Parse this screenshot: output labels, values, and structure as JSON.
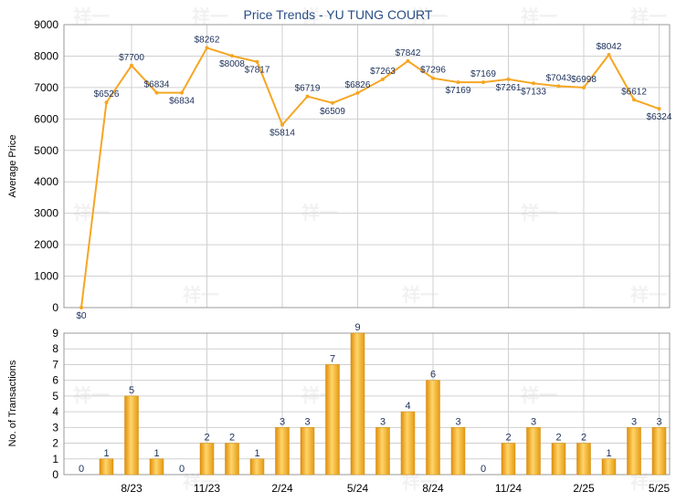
{
  "chart_data": [
    {
      "type": "line",
      "title": "Price Trends - YU TUNG COURT",
      "ylabel": "Average Price",
      "ylim": [
        0,
        9000
      ],
      "yticks": [
        "0",
        "1000",
        "2000",
        "3000",
        "4000",
        "5000",
        "6000",
        "7000",
        "8000",
        "9000"
      ],
      "grid": true,
      "color": "#f5a623",
      "x": [
        0,
        1,
        2,
        3,
        4,
        5,
        6,
        7,
        8,
        9,
        10,
        11,
        12,
        13,
        14,
        15,
        16,
        17,
        18,
        19,
        20,
        21,
        22,
        23
      ],
      "values": [
        0,
        6526,
        7700,
        6834,
        6834,
        8262,
        8008,
        7817,
        5814,
        6719,
        6509,
        6826,
        7263,
        7842,
        7296,
        7169,
        7169,
        7261,
        7133,
        7043,
        6998,
        8042,
        6612,
        6324
      ],
      "labels": [
        "$0",
        "$6526",
        "$7700",
        "$6834",
        "$6834",
        "$8262",
        "$8008",
        "$7817",
        "$5814",
        "$6719",
        "$6509",
        "$6826",
        "$7263",
        "$7842",
        "$7296",
        "$7169",
        "$7169",
        "$7261",
        "$7133",
        "$7043",
        "$6998",
        "$8042",
        "$6612",
        "$6324"
      ]
    },
    {
      "type": "bar",
      "ylabel": "No. of Transactions",
      "ylim": [
        0,
        9
      ],
      "yticks": [
        "0",
        "1",
        "2",
        "3",
        "4",
        "5",
        "6",
        "7",
        "8",
        "9"
      ],
      "grid": true,
      "color": "#f0a81e",
      "x": [
        0,
        1,
        2,
        3,
        4,
        5,
        6,
        7,
        8,
        9,
        10,
        11,
        12,
        13,
        14,
        15,
        16,
        17,
        18,
        19,
        20,
        21,
        22,
        23
      ],
      "values": [
        0,
        1,
        5,
        1,
        0,
        2,
        2,
        1,
        3,
        3,
        7,
        9,
        3,
        4,
        6,
        3,
        0,
        2,
        3,
        2,
        2,
        1,
        3,
        3
      ],
      "xtick_labels": [
        "8/23",
        "11/23",
        "2/24",
        "5/24",
        "8/24",
        "11/24",
        "2/25",
        "5/25"
      ],
      "xtick_positions": [
        2,
        5,
        8,
        11,
        14,
        17,
        20,
        23
      ]
    }
  ],
  "watermark": "祥一"
}
